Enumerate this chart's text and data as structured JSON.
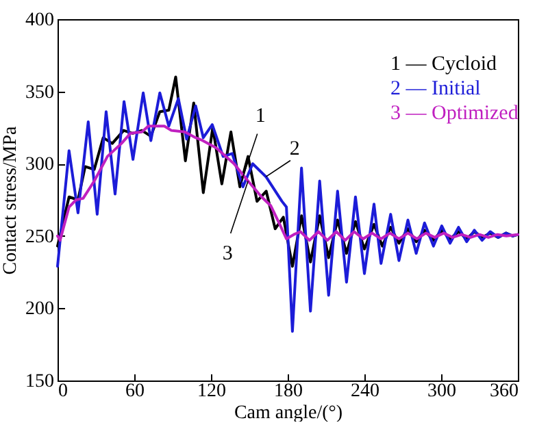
{
  "chart_data": {
    "type": "line",
    "xlabel": "Cam angle/(°)",
    "ylabel": "Contact stress/MPa",
    "xlim": [
      0,
      360
    ],
    "xticks": [
      0,
      60,
      120,
      180,
      240,
      300,
      360
    ],
    "ylim": [
      150,
      400
    ],
    "yticks": [
      150,
      200,
      250,
      300,
      350,
      400
    ],
    "grid": false,
    "marker": "none",
    "line_style": "solid",
    "annotations": [
      {
        "text": "1",
        "x": 142.6,
        "y": 284.5
      },
      {
        "text": "2",
        "x": 163,
        "y": 291
      },
      {
        "text": "3",
        "x": 149,
        "y": 288
      }
    ],
    "series": [
      {
        "name": "1 — Cycloid",
        "color": "#000000",
        "x": [
          0,
          9,
          16,
          21.6,
          28.7,
          35.7,
          42.8,
          51.7,
          58.8,
          66,
          73,
          80,
          87,
          92.4,
          100,
          106.5,
          114,
          121.4,
          128.5,
          135.6,
          142.6,
          149,
          156,
          163.2,
          170.2,
          176.6,
          183.7,
          190.8,
          197.8,
          205,
          212,
          219,
          226,
          233,
          240,
          247.5,
          254,
          260.5,
          267,
          274,
          280.5,
          287,
          294,
          300.5,
          307,
          313.6,
          320,
          326,
          332,
          338.4,
          344.6,
          350.8,
          356,
          360
        ],
        "values": [
          243,
          277,
          275,
          298,
          296,
          318,
          314,
          323,
          321,
          323,
          319,
          336,
          337,
          360,
          302,
          342,
          280,
          325,
          286,
          322,
          284,
          305,
          274,
          281,
          255,
          263,
          229,
          264,
          232,
          264,
          235,
          261,
          238,
          260,
          241,
          258,
          243,
          256,
          245,
          255,
          246,
          254,
          247,
          254,
          248,
          253,
          248,
          253,
          249,
          252,
          249,
          252,
          250,
          251
        ]
      },
      {
        "name": "2 — Initial",
        "color": "#1c1cd8",
        "x": [
          0,
          9,
          16,
          24,
          31,
          38,
          45,
          52,
          59,
          67,
          73,
          80,
          87,
          94.5,
          101,
          108,
          114,
          121,
          129.5,
          136.6,
          145,
          152.6,
          163,
          175.5,
          179,
          183.7,
          190.8,
          197.8,
          205,
          212,
          219,
          226,
          233,
          240,
          247.5,
          253,
          260.5,
          267,
          274,
          280.5,
          287,
          294,
          300.5,
          307,
          313.6,
          320,
          326,
          332,
          338.4,
          344.6,
          350.8,
          356,
          360
        ],
        "values": [
          229,
          309,
          266,
          329,
          265,
          336,
          279,
          343,
          303,
          349,
          316,
          349,
          326,
          345,
          317,
          340,
          318,
          327,
          305,
          307,
          284,
          300,
          291,
          274,
          270,
          184,
          297,
          198,
          288,
          209,
          281,
          218,
          277,
          224,
          272,
          231,
          265,
          233,
          261,
          238,
          259,
          243,
          257,
          245,
          256,
          246,
          254,
          247,
          253,
          249,
          252,
          250,
          251
        ]
      },
      {
        "name": "3 — Optimized",
        "color": "#c020c0",
        "x": [
          0,
          2,
          9,
          14.5,
          20,
          28.7,
          39,
          50,
          57,
          66,
          71,
          83.5,
          89,
          99.5,
          108,
          113.6,
          124,
          127.8,
          138,
          149,
          159.6,
          166.7,
          173.8,
          179,
          184.8,
          190,
          197,
          204,
          211,
          218,
          225,
          232,
          239,
          246,
          253,
          260,
          267,
          274,
          281,
          288,
          295,
          302,
          309,
          316,
          323,
          330,
          337,
          344,
          351,
          360
        ],
        "values": [
          250,
          247,
          270,
          275,
          276,
          288,
          305,
          314,
          321,
          322,
          326,
          326,
          323,
          322,
          318,
          316,
          311,
          308,
          300,
          288,
          277,
          271,
          258,
          248,
          251,
          253,
          247,
          253,
          247,
          253,
          247,
          253,
          248,
          252,
          248,
          252,
          248,
          252,
          248,
          252,
          249,
          252,
          249,
          251,
          249,
          251,
          249,
          251,
          250,
          251
        ]
      }
    ]
  }
}
